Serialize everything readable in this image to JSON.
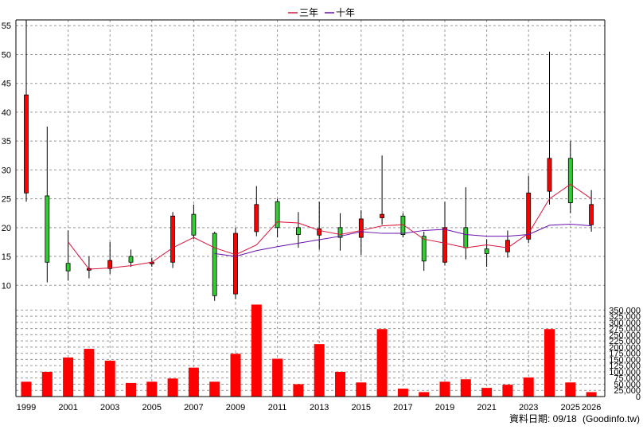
{
  "chart_data": [
    {
      "type": "candlestick",
      "legend": [
        {
          "name": "三年",
          "color": "#dc143c"
        },
        {
          "name": "十年",
          "color": "#6a0dad"
        }
      ],
      "legend_position": "top-center",
      "grid": true,
      "ylim": [
        7,
        56
      ],
      "yticks": [
        10,
        15,
        20,
        25,
        30,
        35,
        40,
        45,
        50,
        55
      ],
      "up_color": "#ff0000",
      "down_color": "#33cc33",
      "candles": [
        {
          "year": 1999,
          "open": 26.0,
          "close": 43.0,
          "high": 56.0,
          "low": 24.5
        },
        {
          "year": 2000,
          "open": 25.5,
          "close": 14.0,
          "high": 37.5,
          "low": 10.5
        },
        {
          "year": 2001,
          "open": 13.8,
          "close": 12.5,
          "high": 19.5,
          "low": 10.8
        },
        {
          "year": 2002,
          "open": 12.8,
          "close": 12.9,
          "high": 15.0,
          "low": 11.2
        },
        {
          "year": 2003,
          "open": 12.9,
          "close": 14.3,
          "high": 17.5,
          "low": 12.0
        },
        {
          "year": 2004,
          "open": 15.0,
          "close": 14.0,
          "high": 16.2,
          "low": 13.2
        },
        {
          "year": 2005,
          "open": 14.0,
          "close": 14.0,
          "high": 14.8,
          "low": 13.2
        },
        {
          "year": 2006,
          "open": 14.0,
          "close": 22.0,
          "high": 22.7,
          "low": 13.0
        },
        {
          "year": 2007,
          "open": 22.3,
          "close": 18.7,
          "high": 24.0,
          "low": 18.0
        },
        {
          "year": 2008,
          "open": 19.0,
          "close": 8.2,
          "high": 19.3,
          "low": 7.3
        },
        {
          "year": 2009,
          "open": 8.5,
          "close": 19.0,
          "high": 20.0,
          "low": 7.6
        },
        {
          "year": 2010,
          "open": 19.3,
          "close": 24.0,
          "high": 27.2,
          "low": 18.5
        },
        {
          "year": 2011,
          "open": 24.5,
          "close": 20.0,
          "high": 25.0,
          "low": 18.3
        },
        {
          "year": 2012,
          "open": 20.0,
          "close": 18.8,
          "high": 22.7,
          "low": 16.5
        },
        {
          "year": 2013,
          "open": 18.7,
          "close": 19.8,
          "high": 24.5,
          "low": 16.2
        },
        {
          "year": 2014,
          "open": 20.0,
          "close": 18.3,
          "high": 22.5,
          "low": 16.0
        },
        {
          "year": 2015,
          "open": 18.3,
          "close": 21.5,
          "high": 23.0,
          "low": 15.3
        },
        {
          "year": 2016,
          "open": 21.7,
          "close": 22.3,
          "high": 32.5,
          "low": 20.5
        },
        {
          "year": 2017,
          "open": 22.0,
          "close": 18.8,
          "high": 22.5,
          "low": 18.3
        },
        {
          "year": 2018,
          "open": 18.5,
          "close": 14.2,
          "high": 19.3,
          "low": 12.5
        },
        {
          "year": 2019,
          "open": 14.0,
          "close": 20.0,
          "high": 24.5,
          "low": 13.5
        },
        {
          "year": 2020,
          "open": 20.0,
          "close": 16.5,
          "high": 27.0,
          "low": 14.5
        },
        {
          "year": 2021,
          "open": 16.3,
          "close": 15.5,
          "high": 18.0,
          "low": 13.2
        },
        {
          "year": 2022,
          "open": 15.8,
          "close": 17.8,
          "high": 19.5,
          "low": 14.8
        },
        {
          "year": 2023,
          "open": 18.0,
          "close": 26.0,
          "high": 29.0,
          "low": 17.3
        },
        {
          "year": 2024,
          "open": 26.3,
          "close": 32.0,
          "high": 50.5,
          "low": 24.0
        },
        {
          "year": 2025,
          "open": 32.0,
          "close": 24.3,
          "high": 35.0,
          "low": 22.5
        },
        {
          "year": 2026,
          "open": 20.5,
          "close": 24.0,
          "high": 26.5,
          "low": 19.3
        }
      ],
      "series": [
        {
          "name": "三年",
          "color": "#dc143c",
          "points": [
            [
              2001,
              17.5
            ],
            [
              2002,
              12.8
            ],
            [
              2003,
              13.0
            ],
            [
              2004,
              13.4
            ],
            [
              2005,
              14.0
            ],
            [
              2006,
              16.5
            ],
            [
              2007,
              18.3
            ],
            [
              2008,
              16.5
            ],
            [
              2009,
              15.3
            ],
            [
              2010,
              17.0
            ],
            [
              2011,
              21.0
            ],
            [
              2012,
              20.8
            ],
            [
              2013,
              19.5
            ],
            [
              2014,
              18.8
            ],
            [
              2015,
              19.5
            ],
            [
              2016,
              20.3
            ],
            [
              2017,
              20.5
            ],
            [
              2018,
              18.0
            ],
            [
              2019,
              17.3
            ],
            [
              2020,
              16.5
            ],
            [
              2021,
              17.0
            ],
            [
              2022,
              16.5
            ],
            [
              2023,
              19.0
            ],
            [
              2024,
              25.0
            ],
            [
              2025,
              27.5
            ],
            [
              2026,
              25.0
            ]
          ]
        },
        {
          "name": "十年",
          "color": "#6a0dad",
          "points": [
            [
              2008,
              15.5
            ],
            [
              2009,
              15.0
            ],
            [
              2010,
              16.0
            ],
            [
              2011,
              16.7
            ],
            [
              2012,
              17.3
            ],
            [
              2013,
              17.9
            ],
            [
              2014,
              18.5
            ],
            [
              2015,
              19.3
            ],
            [
              2016,
              19.0
            ],
            [
              2017,
              19.0
            ],
            [
              2018,
              19.5
            ],
            [
              2019,
              19.7
            ],
            [
              2020,
              18.8
            ],
            [
              2021,
              18.5
            ],
            [
              2022,
              18.5
            ],
            [
              2023,
              18.8
            ],
            [
              2024,
              20.4
            ],
            [
              2025,
              20.6
            ],
            [
              2026,
              20.3
            ]
          ]
        }
      ]
    },
    {
      "type": "bar",
      "grid": true,
      "ylim": [
        0,
        380000
      ],
      "yticks": [
        "0",
        "25,000",
        "50,000",
        "75,000",
        "100,000",
        "125,000",
        "150,000",
        "175,000",
        "200,000",
        "225,000",
        "250,000",
        "275,000",
        "300,000",
        "325,000",
        "350,000"
      ],
      "ytick_values": [
        0,
        25000,
        50000,
        75000,
        100000,
        125000,
        150000,
        175000,
        200000,
        225000,
        250000,
        275000,
        300000,
        325000,
        350000
      ],
      "bar_color": "#ff0000",
      "categories": [
        1999,
        2000,
        2001,
        2002,
        2003,
        2004,
        2005,
        2006,
        2007,
        2008,
        2009,
        2010,
        2011,
        2012,
        2013,
        2014,
        2015,
        2016,
        2017,
        2018,
        2019,
        2020,
        2021,
        2022,
        2023,
        2024,
        2025,
        2026
      ],
      "values": [
        60000,
        100000,
        158000,
        193000,
        145000,
        55000,
        60000,
        73000,
        117000,
        60000,
        173000,
        372000,
        153000,
        50000,
        212000,
        100000,
        57000,
        273000,
        32000,
        18000,
        60000,
        70000,
        35000,
        48000,
        77000,
        273000,
        57000,
        18000
      ]
    }
  ],
  "x_tick_labels": [
    "1999",
    "2001",
    "2003",
    "2005",
    "2007",
    "2009",
    "2011",
    "2013",
    "2015",
    "2017",
    "2019",
    "2021",
    "2023",
    "2025",
    "2026"
  ],
  "legend_labels": {
    "three_year": "三年",
    "ten_year": "十年"
  },
  "footer": {
    "date": "資料日期: 09/18",
    "source": "(Goodinfo.tw)"
  }
}
